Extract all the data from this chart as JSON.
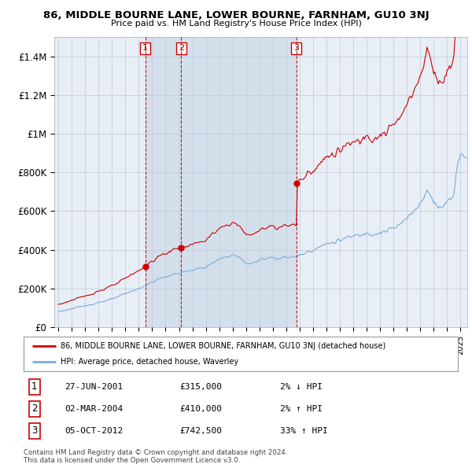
{
  "title": "86, MIDDLE BOURNE LANE, LOWER BOURNE, FARNHAM, GU10 3NJ",
  "subtitle": "Price paid vs. HM Land Registry's House Price Index (HPI)",
  "legend_label_red": "86, MIDDLE BOURNE LANE, LOWER BOURNE, FARNHAM, GU10 3NJ (detached house)",
  "legend_label_blue": "HPI: Average price, detached house, Waverley",
  "footnote1": "Contains HM Land Registry data © Crown copyright and database right 2024.",
  "footnote2": "This data is licensed under the Open Government Licence v3.0.",
  "transactions": [
    {
      "num": 1,
      "date": "27-JUN-2001",
      "price": 315000,
      "pct": "2%",
      "dir": "↓",
      "year": 2001.49
    },
    {
      "num": 2,
      "date": "02-MAR-2004",
      "price": 410000,
      "pct": "2%",
      "dir": "↑",
      "year": 2004.17
    },
    {
      "num": 3,
      "date": "05-OCT-2012",
      "price": 742500,
      "pct": "33%",
      "dir": "↑",
      "year": 2012.75
    }
  ],
  "ylim": [
    0,
    1500000
  ],
  "yticks": [
    0,
    200000,
    400000,
    600000,
    800000,
    1000000,
    1200000,
    1400000
  ],
  "ytick_labels": [
    "£0",
    "£200K",
    "£400K",
    "£600K",
    "£800K",
    "£1M",
    "£1.2M",
    "£1.4M"
  ],
  "xlim_start": 1994.7,
  "xlim_end": 2025.5,
  "background_color": "#ffffff",
  "chart_bg_color": "#e8eef5",
  "grid_color": "#c0c8d8",
  "line_color_red": "#cc0000",
  "line_color_blue": "#7aabdb",
  "transaction_line_color": "#cc0000",
  "marker_color": "#cc0000",
  "shade_color": "#d0dcea"
}
